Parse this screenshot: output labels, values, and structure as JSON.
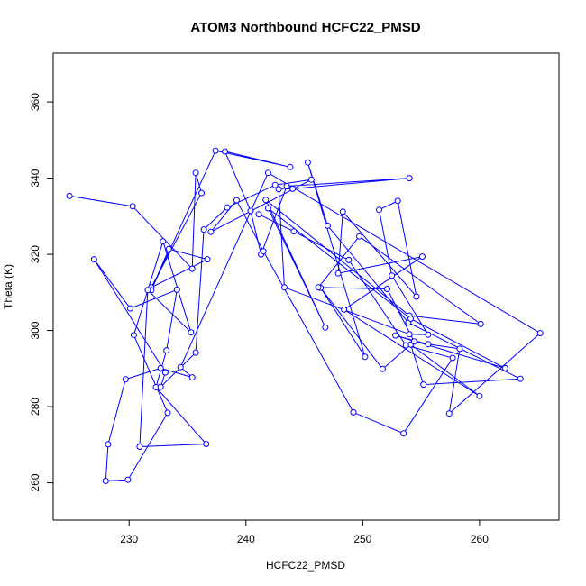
{
  "chart_data": {
    "type": "line",
    "title": "ATOM3 Northbound HCFC22_PMSD",
    "xlabel": "HCFC22_PMSD",
    "ylabel": "Theta (K)",
    "xlim": [
      223.5,
      266.8
    ],
    "ylim": [
      250.2,
      372.8
    ],
    "xticks": [
      230,
      240,
      250,
      260
    ],
    "yticks": [
      260,
      280,
      300,
      320,
      340,
      360
    ],
    "grid": false,
    "line_color": "#0000ff",
    "marker": "open-circle",
    "series": [
      {
        "values": [
          [
            224.9,
            335.3
          ],
          [
            230.3,
            332.6
          ],
          [
            235.4,
            316.2
          ],
          [
            235.7,
            341.4
          ],
          [
            236.2,
            336.1
          ],
          [
            231.9,
            311.3
          ],
          [
            236.7,
            318.7
          ],
          [
            233.4,
            321.4
          ],
          [
            231.9,
            310.6
          ],
          [
            237.4,
            347.2
          ],
          [
            243.8,
            342.9
          ],
          [
            238.2,
            347.0
          ],
          [
            240.4,
            331.4
          ],
          [
            241.3,
            320.0
          ],
          [
            243.5,
            337.9
          ],
          [
            254.0,
            340.0
          ],
          [
            244.0,
            337.2
          ],
          [
            242.8,
            337.1
          ],
          [
            243.3,
            311.3
          ],
          [
            254.0,
            299.0
          ],
          [
            255.6,
            298.9
          ],
          [
            252.5,
            314.4
          ],
          [
            251.4,
            331.7
          ],
          [
            253.0,
            334.0
          ],
          [
            254.6,
            308.9
          ],
          [
            248.3,
            331.2
          ],
          [
            247.9,
            315.0
          ],
          [
            255.1,
            319.4
          ],
          [
            248.4,
            305.5
          ],
          [
            260.0,
            282.8
          ],
          [
            254.1,
            296.3
          ],
          [
            255.2,
            285.8
          ],
          [
            263.5,
            287.3
          ],
          [
            253.9,
            302.1
          ],
          [
            247.0,
            327.5
          ],
          [
            245.3,
            344.1
          ],
          [
            250.2,
            293.1
          ],
          [
            246.4,
            311.2
          ],
          [
            251.7,
            289.9
          ],
          [
            254.4,
            297.1
          ],
          [
            252.1,
            310.9
          ],
          [
            246.2,
            311.3
          ],
          [
            249.7,
            324.7
          ],
          [
            260.1,
            301.7
          ],
          [
            254.0,
            303.9
          ],
          [
            241.7,
            334.3
          ],
          [
            246.8,
            300.8
          ],
          [
            241.9,
            332.1
          ],
          [
            254.1,
            303.1
          ],
          [
            262.2,
            290.1
          ],
          [
            252.8,
            298.7
          ],
          [
            255.6,
            296.4
          ],
          [
            258.3,
            295.2
          ],
          [
            257.4,
            278.2
          ],
          [
            265.2,
            299.3
          ],
          [
            241.9,
            341.4
          ],
          [
            234.4,
            290.4
          ],
          [
            235.4,
            287.7
          ],
          [
            232.7,
            290.1
          ],
          [
            229.7,
            287.2
          ],
          [
            228.2,
            270.1
          ],
          [
            228.0,
            260.5
          ],
          [
            229.9,
            260.8
          ],
          [
            233.3,
            278.4
          ],
          [
            230.4,
            298.8
          ],
          [
            232.9,
            323.4
          ],
          [
            235.3,
            299.5
          ],
          [
            231.6,
            310.6
          ],
          [
            230.9,
            269.5
          ],
          [
            236.6,
            270.2
          ],
          [
            232.3,
            285.1
          ],
          [
            233.2,
            294.8
          ],
          [
            234.1,
            310.7
          ],
          [
            230.1,
            305.8
          ],
          [
            227.0,
            318.7
          ],
          [
            233.1,
            289.0
          ],
          [
            232.7,
            285.2
          ],
          [
            235.7,
            294.2
          ],
          [
            236.4,
            326.5
          ],
          [
            238.4,
            332.3
          ],
          [
            242.5,
            338.2
          ],
          [
            245.6,
            339.6
          ],
          [
            237.0,
            325.9
          ],
          [
            239.2,
            334.2
          ],
          [
            241.5,
            320.8
          ],
          [
            249.2,
            278.5
          ],
          [
            253.5,
            273.0
          ],
          [
            257.7,
            292.8
          ],
          [
            253.7,
            296.1
          ],
          [
            248.8,
            318.5
          ],
          [
            244.1,
            326.0
          ],
          [
            241.1,
            330.5
          ]
        ]
      }
    ]
  }
}
